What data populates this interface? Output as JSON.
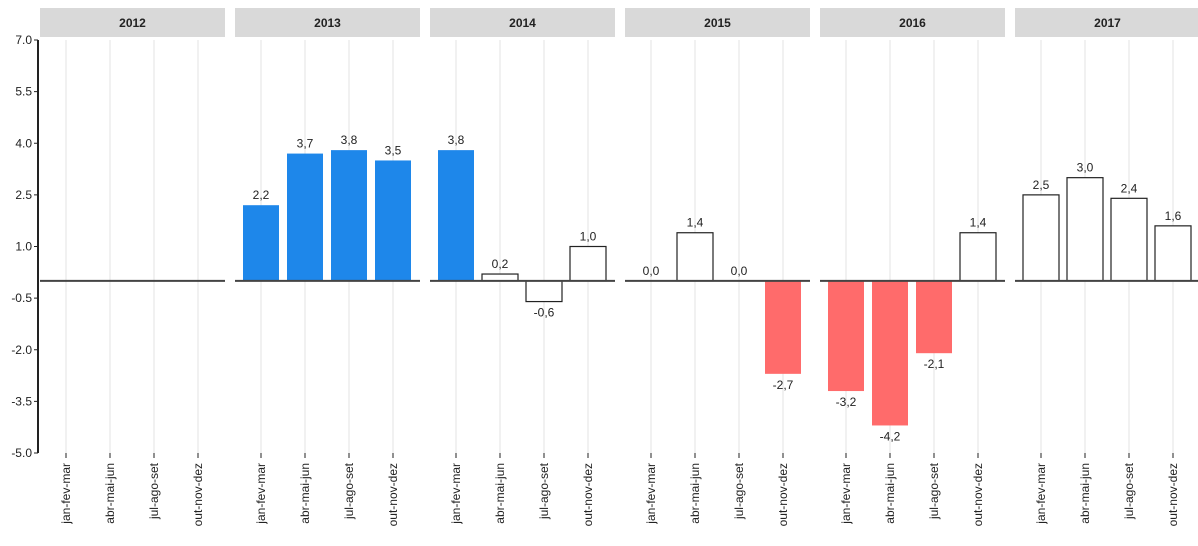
{
  "chart_data": {
    "type": "bar",
    "ylim": [
      -5.0,
      7.0
    ],
    "yticks": [
      {
        "value": -5.0,
        "label": "-5.0"
      },
      {
        "value": -3.5,
        "label": "-3.5"
      },
      {
        "value": -2.0,
        "label": "-2.0"
      },
      {
        "value": -0.5,
        "label": "-0.5"
      },
      {
        "value": 1.0,
        "label": "1.0"
      },
      {
        "value": 2.5,
        "label": "2.5"
      },
      {
        "value": 4.0,
        "label": "4.0"
      },
      {
        "value": 5.5,
        "label": "5.5"
      },
      {
        "value": 7.0,
        "label": "7.0"
      }
    ],
    "grid": true,
    "panels": [
      {
        "title": "2012",
        "categories": [
          "jan-fev-mar",
          "abr-mai-jun",
          "jul-ago-set",
          "out-nov-dez"
        ],
        "values": [
          null,
          null,
          null,
          null
        ]
      },
      {
        "title": "2013",
        "categories": [
          "jan-fev-mar",
          "abr-mai-jun",
          "jul-ago-set",
          "out-nov-dez"
        ],
        "values": [
          2.2,
          3.7,
          3.8,
          3.5
        ],
        "value_labels": [
          "2,2",
          "3,7",
          "3,8",
          "3,5"
        ],
        "colors": [
          "#1e87ea",
          "#1e87ea",
          "#1e87ea",
          "#1e87ea"
        ]
      },
      {
        "title": "2014",
        "categories": [
          "jan-fev-mar",
          "abr-mai-jun",
          "jul-ago-set",
          "out-nov-dez"
        ],
        "values": [
          3.8,
          0.2,
          -0.6,
          1.0
        ],
        "value_labels": [
          "3,8",
          "0,2",
          "-0,6",
          "1,0"
        ],
        "colors": [
          "#1e87ea",
          "#ffffff",
          "#ffffff",
          "#ffffff"
        ]
      },
      {
        "title": "2015",
        "categories": [
          "jan-fev-mar",
          "abr-mai-jun",
          "jul-ago-set",
          "out-nov-dez"
        ],
        "values": [
          0.0,
          1.4,
          0.0,
          -2.7
        ],
        "value_labels": [
          "0,0",
          "1,4",
          "0,0",
          "-2,7"
        ],
        "colors": [
          "#ffffff",
          "#ffffff",
          "#ffffff",
          "#ff6b6b"
        ]
      },
      {
        "title": "2016",
        "categories": [
          "jan-fev-mar",
          "abr-mai-jun",
          "jul-ago-set",
          "out-nov-dez"
        ],
        "values": [
          -3.2,
          -4.2,
          -2.1,
          1.4
        ],
        "value_labels": [
          "-3,2",
          "-4,2",
          "-2,1",
          "1,4"
        ],
        "colors": [
          "#ff6b6b",
          "#ff6b6b",
          "#ff6b6b",
          "#ffffff"
        ]
      },
      {
        "title": "2017",
        "categories": [
          "jan-fev-mar",
          "abr-mai-jun",
          "jul-ago-set",
          "out-nov-dez"
        ],
        "values": [
          2.5,
          3.0,
          2.4,
          1.6
        ],
        "value_labels": [
          "2,5",
          "3,0",
          "2,4",
          "1,6"
        ],
        "colors": [
          "#ffffff",
          "#ffffff",
          "#ffffff",
          "#ffffff"
        ]
      }
    ]
  }
}
